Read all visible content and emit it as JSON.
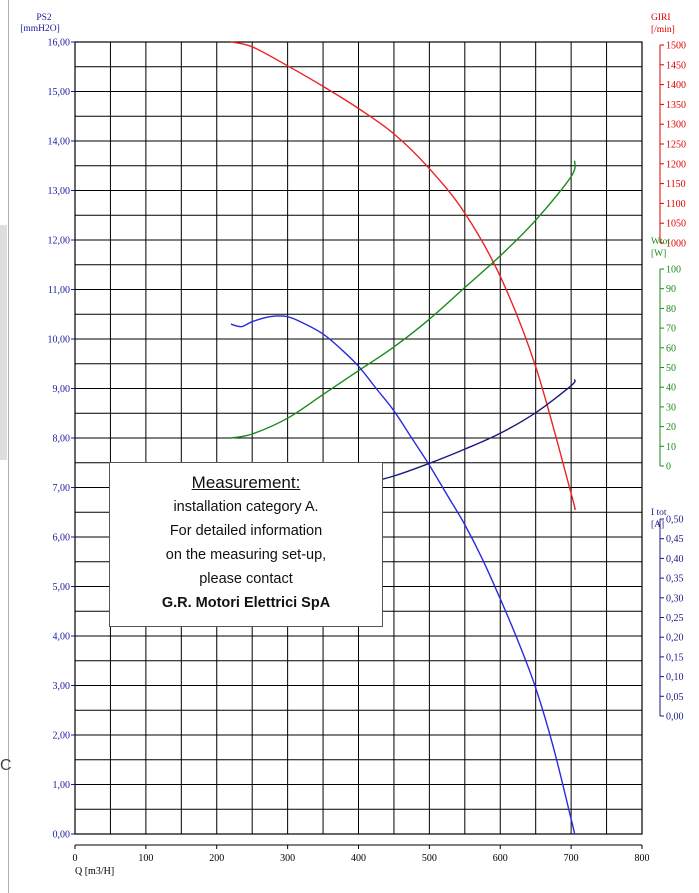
{
  "chart_data": {
    "type": "line",
    "x_axis": {
      "label": "Q [m3/H]",
      "range": [
        0,
        800
      ],
      "ticks": [
        "0",
        "100",
        "200",
        "300",
        "400",
        "500",
        "600",
        "700",
        "800"
      ]
    },
    "axes": {
      "ps2": {
        "label_line1": "PS2",
        "label_line2": "[mmH2O]",
        "range": [
          0,
          16
        ],
        "ticks": [
          "0,00",
          "1,00",
          "2,00",
          "3,00",
          "4,00",
          "5,00",
          "6,00",
          "7,00",
          "8,00",
          "9,00",
          "10,00",
          "11,00",
          "12,00",
          "13,00",
          "14,00",
          "15,00",
          "16,00"
        ],
        "color": "#1a1aa0"
      },
      "giri": {
        "label_line1": "GIRI",
        "label_line2": "[/min]",
        "range": [
          1000,
          1500
        ],
        "ticks": [
          "1000",
          "1050",
          "1100",
          "1150",
          "1200",
          "1250",
          "1300",
          "1350",
          "1400",
          "1450",
          "1500"
        ],
        "color": "#e00000"
      },
      "wtot": {
        "label_line1": "Wtot",
        "label_line2": "[W]",
        "range": [
          0,
          100
        ],
        "ticks": [
          "0",
          "10",
          "20",
          "30",
          "40",
          "50",
          "60",
          "70",
          "80",
          "90",
          "100"
        ],
        "color": "#1a8a1a"
      },
      "itot": {
        "label_line1": "I tot",
        "label_line2": "[A]",
        "range": [
          0,
          0.5
        ],
        "ticks": [
          "0,00",
          "0,05",
          "0,10",
          "0,15",
          "0,20",
          "0,25",
          "0,30",
          "0,35",
          "0,40",
          "0,45",
          "0,50"
        ],
        "color": "#1a1a80"
      }
    },
    "series": [
      {
        "axis": "giri",
        "color": "#ee2222",
        "x": [
          220,
          250,
          300,
          350,
          400,
          450,
          500,
          550,
          600,
          650,
          700,
          705
        ],
        "y": [
          1500,
          1497,
          1485,
          1472,
          1458,
          1442,
          1420,
          1392,
          1352,
          1295,
          1215,
          1205
        ]
      },
      {
        "axis": "wtot",
        "color": "#1a8a1a",
        "x": [
          220,
          250,
          300,
          350,
          400,
          450,
          500,
          550,
          600,
          650,
          700,
          705
        ],
        "y": [
          50,
          50.5,
          52.5,
          55.5,
          58.5,
          61.5,
          65,
          69,
          73,
          77.5,
          83,
          85
        ]
      },
      {
        "axis": "ps2",
        "color": "#2a2ae0",
        "x": [
          220,
          235,
          250,
          275,
          300,
          325,
          350,
          375,
          400,
          425,
          450,
          475,
          500,
          525,
          550,
          575,
          600,
          625,
          650,
          675,
          700,
          705
        ],
        "y": [
          10.3,
          10.25,
          10.35,
          10.45,
          10.45,
          10.3,
          10.1,
          9.8,
          9.45,
          9.0,
          8.55,
          8.0,
          7.45,
          6.85,
          6.25,
          5.55,
          4.75,
          3.9,
          2.95,
          1.75,
          0.3,
          0
        ]
      },
      {
        "axis": "itot",
        "color": "#1a1a80",
        "x": [
          220,
          250,
          300,
          350,
          400,
          450,
          500,
          550,
          600,
          650,
          700,
          705
        ],
        "y": [
          0.2,
          0.2,
          0.206,
          0.213,
          0.22,
          0.226,
          0.234,
          0.243,
          0.253,
          0.266,
          0.283,
          0.287
        ]
      }
    ],
    "grid": true
  },
  "note": {
    "heading": "Measurement:",
    "line1": "installation category A.",
    "line2": "For detailed information",
    "line3": "on the measuring set-up,",
    "line4": "please contact",
    "company": "G.R. Motori Elettrici SpA"
  },
  "stray_char": "C"
}
